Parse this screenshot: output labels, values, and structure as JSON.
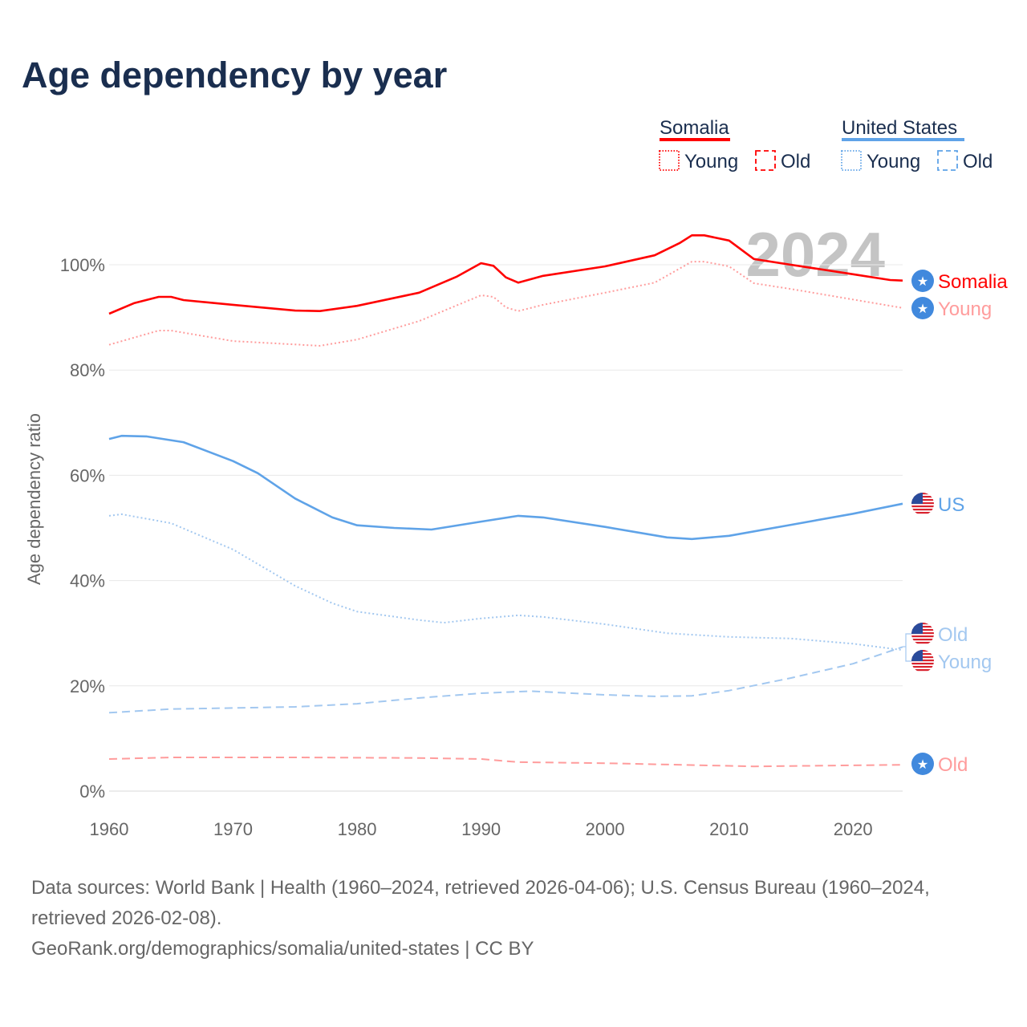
{
  "title": "Age dependency by year",
  "legend": {
    "groups": [
      {
        "name": "Somalia",
        "color": "#ff0000",
        "items": [
          "Young",
          "Old"
        ]
      },
      {
        "name": "United States",
        "color": "#5fa3e8",
        "items": [
          "Young",
          "Old"
        ]
      }
    ]
  },
  "year_watermark": "2024",
  "sources": {
    "line1": "Data sources: World Bank | Health (1960–2024, retrieved 2026-04-06); U.S. Census Bureau (1960–2024, retrieved 2026-02-08).",
    "line2": "GeoRank.org/demographics/somalia/united-states | CC BY"
  },
  "chart_data": {
    "type": "line",
    "title": "Age dependency by year",
    "xlabel": "",
    "ylabel": "Age dependency ratio",
    "xlim": [
      1960,
      2024
    ],
    "ylim": [
      0,
      100
    ],
    "x_ticks": [
      "1960",
      "1970",
      "1980",
      "1990",
      "2000",
      "2010",
      "2020"
    ],
    "y_ticks": [
      "0%",
      "20%",
      "40%",
      "60%",
      "80%",
      "100%"
    ],
    "grid": true,
    "series": [
      {
        "name": "Somalia",
        "end_label": "Somalia",
        "color": "#ff0000",
        "style": "solid",
        "flag": "somalia",
        "x": [
          1960,
          1962,
          1964,
          1965,
          1966,
          1970,
          1975,
          1977,
          1980,
          1985,
          1988,
          1990,
          1991,
          1992,
          1993,
          1995,
          2000,
          2004,
          2006,
          2007,
          2008,
          2010,
          2012,
          2015,
          2020,
          2023,
          2024
        ],
        "y": [
          90.7,
          92.7,
          93.9,
          93.9,
          93.3,
          92.4,
          91.3,
          91.2,
          92.2,
          94.7,
          97.7,
          100.3,
          99.8,
          97.6,
          96.6,
          97.9,
          99.7,
          101.8,
          104.1,
          105.6,
          105.6,
          104.6,
          101.1,
          100.0,
          98.2,
          97.1,
          97.0
        ]
      },
      {
        "name": "Somalia Young",
        "end_label": "Young",
        "color": "#ff9c9c",
        "style": "dotted",
        "flag": "somalia",
        "x": [
          1960,
          1964,
          1965,
          1970,
          1977,
          1980,
          1985,
          1990,
          1991,
          1992,
          1993,
          1995,
          2000,
          2004,
          2007,
          2008,
          2010,
          2012,
          2015,
          2020,
          2024
        ],
        "y": [
          84.8,
          87.5,
          87.5,
          85.5,
          84.6,
          85.8,
          89.3,
          94.2,
          93.9,
          91.9,
          91.2,
          92.4,
          94.7,
          96.6,
          100.6,
          100.6,
          99.7,
          96.5,
          95.4,
          93.4,
          91.8
        ]
      },
      {
        "name": "Somalia Old",
        "end_label": "Old",
        "color": "#ff9c9c",
        "style": "dashed",
        "flag": "somalia",
        "x": [
          1960,
          1965,
          1975,
          1985,
          1990,
          1993,
          2000,
          2012,
          2024
        ],
        "y": [
          6.1,
          6.4,
          6.4,
          6.3,
          6.1,
          5.5,
          5.3,
          4.7,
          5.0
        ]
      },
      {
        "name": "United States",
        "end_label": "US",
        "color": "#5fa3e8",
        "style": "solid",
        "flag": "us",
        "x": [
          1960,
          1961,
          1963,
          1966,
          1970,
          1972,
          1975,
          1978,
          1980,
          1983,
          1986,
          1990,
          1993,
          1995,
          2000,
          2005,
          2007,
          2010,
          2015,
          2020,
          2024
        ],
        "y": [
          66.9,
          67.5,
          67.4,
          66.3,
          62.7,
          60.4,
          55.6,
          52.0,
          50.5,
          50.0,
          49.7,
          51.2,
          52.3,
          52.0,
          50.2,
          48.2,
          47.9,
          48.5,
          50.6,
          52.7,
          54.6
        ]
      },
      {
        "name": "United States Young",
        "end_label": "Young",
        "color": "#a3c8f0",
        "style": "dotted",
        "flag": "us",
        "x": [
          1960,
          1961,
          1965,
          1970,
          1975,
          1978,
          1980,
          1985,
          1987,
          1990,
          1993,
          1995,
          2000,
          2005,
          2010,
          2015,
          2020,
          2024
        ],
        "y": [
          52.3,
          52.6,
          50.9,
          45.9,
          39.0,
          35.7,
          34.1,
          32.5,
          32.0,
          32.8,
          33.4,
          33.1,
          31.7,
          30.0,
          29.3,
          29.0,
          28.0,
          26.8
        ]
      },
      {
        "name": "United States Old",
        "end_label": "Old",
        "color": "#a3c8f0",
        "style": "dashed",
        "flag": "us",
        "x": [
          1960,
          1965,
          1970,
          1975,
          1980,
          1985,
          1990,
          1994,
          2000,
          2004,
          2007,
          2010,
          2015,
          2020,
          2024
        ],
        "y": [
          14.9,
          15.6,
          15.8,
          16.0,
          16.6,
          17.7,
          18.6,
          19.0,
          18.3,
          18.0,
          18.1,
          19.1,
          21.5,
          24.2,
          27.4
        ]
      }
    ]
  }
}
